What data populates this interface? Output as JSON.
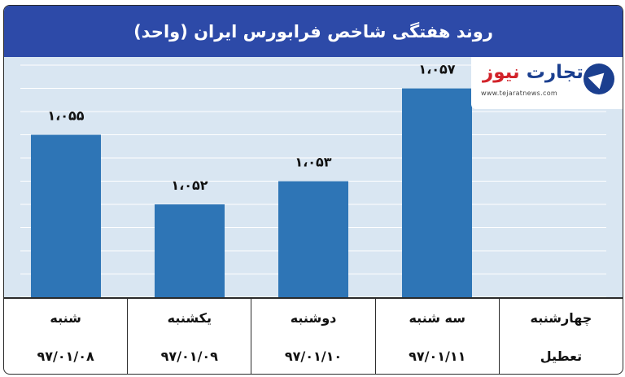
{
  "header": {
    "title": "روند هفتگی شاخص فرابورس ایران (واحد)"
  },
  "logo": {
    "name_part1": "تجارت",
    "name_part2": "نیوز",
    "url": "www.tejaratnews.com"
  },
  "colors": {
    "header": "#2d4aa8",
    "plot_background": "#d9e6f2",
    "bar": "#2e75b6",
    "grid": "#ffffff"
  },
  "chart_data": {
    "type": "bar",
    "categories": [
      "شنبه",
      "یکشنبه",
      "دوشنبه",
      "سه شنبه",
      "چهارشنبه"
    ],
    "values": [
      1055,
      1052,
      1053,
      1057,
      null
    ],
    "data_labels": [
      "۱،۰۵۵",
      "۱،۰۵۲",
      "۱،۰۵۳",
      "۱،۰۵۷",
      ""
    ],
    "ylim": [
      1048,
      1058
    ],
    "grid": true
  },
  "table": {
    "columns": [
      {
        "day": "شنبه",
        "date": "۹۷/۰۱/۰۸"
      },
      {
        "day": "یکشنبه",
        "date": "۹۷/۰۱/۰۹"
      },
      {
        "day": "دوشنبه",
        "date": "۹۷/۰۱/۱۰"
      },
      {
        "day": "سه شنبه",
        "date": "۹۷/۰۱/۱۱"
      },
      {
        "day": "چهارشنبه",
        "date": "تعطیل"
      }
    ]
  }
}
